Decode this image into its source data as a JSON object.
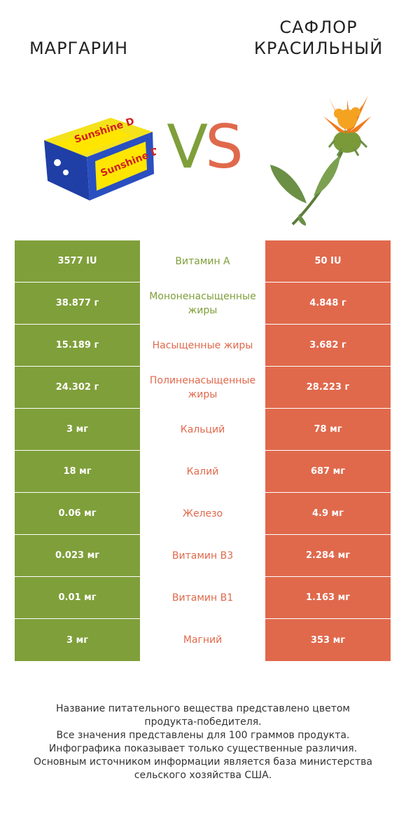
{
  "header": {
    "left_title": "МАРГАРИН",
    "right_title_line1": "САФЛОР",
    "right_title_line2": "КРАСИЛЬНЫЙ",
    "vs_v": "V",
    "vs_s": "S"
  },
  "colors": {
    "left": "#7f9f3a",
    "right": "#e0694c"
  },
  "chart_data": {
    "type": "table",
    "columns": [
      "Маргарин",
      "",
      "Сафлор красильный"
    ],
    "rows": [
      {
        "left": "3577 IU",
        "label": "Витамин A",
        "right": "50 IU",
        "winner": "left"
      },
      {
        "left": "38.877 г",
        "label": "Мононенасыщенные жиры",
        "right": "4.848 г",
        "winner": "left"
      },
      {
        "left": "15.189 г",
        "label": "Насыщенные жиры",
        "right": "3.682 г",
        "winner": "right"
      },
      {
        "left": "24.302 г",
        "label": "Полиненасыщенные жиры",
        "right": "28.223 г",
        "winner": "right"
      },
      {
        "left": "3 мг",
        "label": "Кальций",
        "right": "78 мг",
        "winner": "right"
      },
      {
        "left": "18 мг",
        "label": "Калий",
        "right": "687 мг",
        "winner": "right"
      },
      {
        "left": "0.06 мг",
        "label": "Железо",
        "right": "4.9 мг",
        "winner": "right"
      },
      {
        "left": "0.023 мг",
        "label": "Витамин B3",
        "right": "2.284 мг",
        "winner": "right"
      },
      {
        "left": "0.01 мг",
        "label": "Витамин B1",
        "right": "1.163 мг",
        "winner": "right"
      },
      {
        "left": "3 мг",
        "label": "Магний",
        "right": "353 мг",
        "winner": "right"
      }
    ]
  },
  "footer": {
    "line1": "Название питательного вещества представлено цветом",
    "line2": "продукта-победителя.",
    "line3": "Все значения представлены для 100 граммов продукта.",
    "line4": "Инфографика показывает только существенные различия.",
    "line5": "Основным источником информации является база министерства",
    "line6": "сельского хозяйства США."
  }
}
